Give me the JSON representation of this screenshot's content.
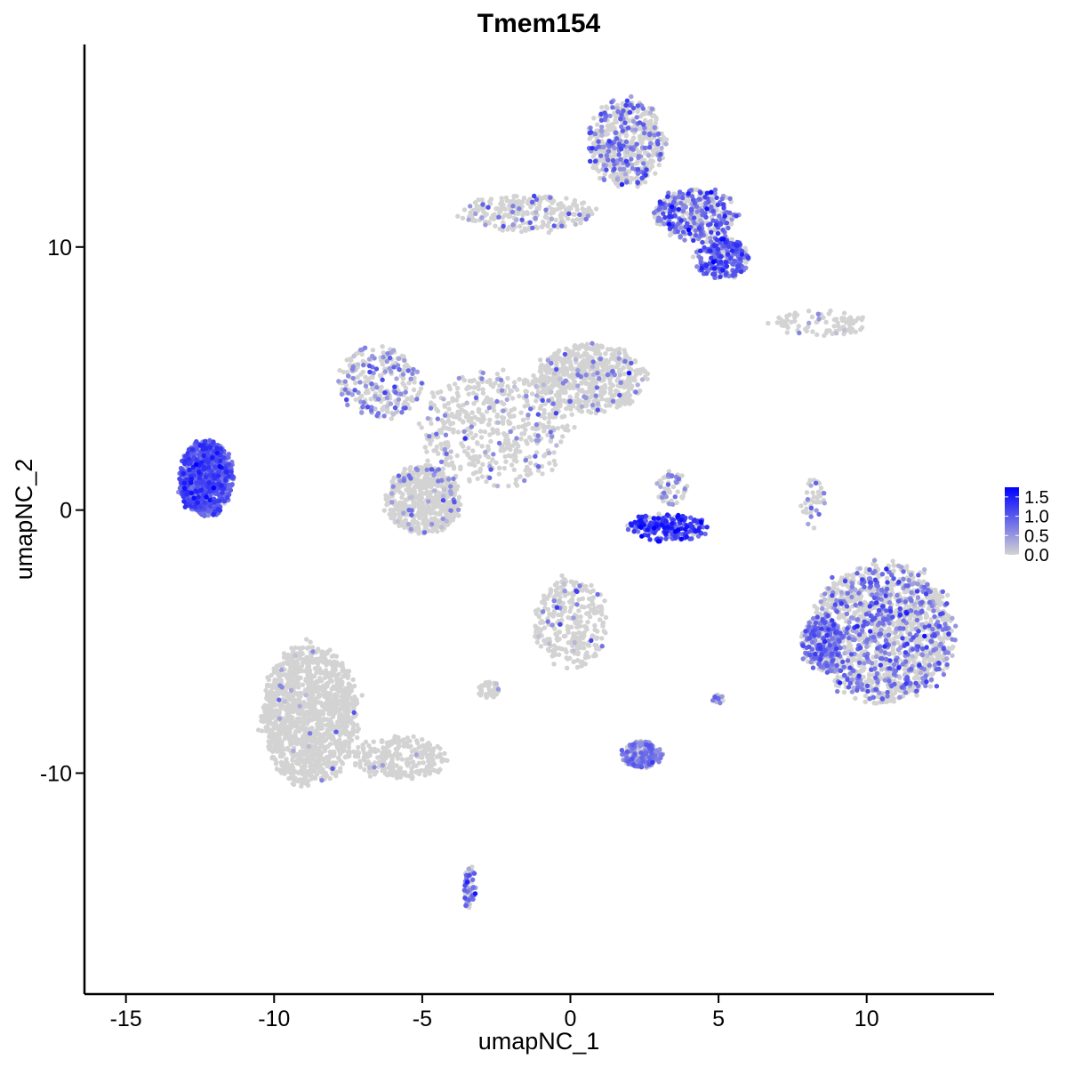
{
  "chart_data": {
    "type": "scatter",
    "title": "Tmem154",
    "xlabel": "umapNC_1",
    "ylabel": "umapNC_2",
    "xlim": [
      -16.4,
      14.3
    ],
    "ylim": [
      -18.4,
      17.7
    ],
    "xticks": [
      -15,
      -10,
      -5,
      0,
      5,
      10
    ],
    "yticks": [
      -10,
      0,
      10
    ],
    "xtick_labels": [
      "-15",
      "-10",
      "-5",
      "0",
      "5",
      "10"
    ],
    "ytick_labels": [
      "-10",
      "0",
      "10"
    ],
    "grid": false,
    "legend": {
      "position": "right",
      "type": "colorbar",
      "ticks": [
        0.0,
        0.5,
        1.0,
        1.5
      ],
      "tick_labels": [
        "0.0",
        "0.5",
        "1.0",
        "1.5"
      ],
      "range": [
        0.0,
        1.75
      ],
      "low_color": "#d3d3d3",
      "high_color": "#0000ff"
    },
    "clusters": [
      {
        "x": [
          -13.2,
          -11.4
        ],
        "y": [
          -0.2,
          2.6
        ],
        "density": 900,
        "expr_frac": 0.95,
        "expr_level": 0.9
      },
      {
        "x": [
          -7.9,
          -5.0
        ],
        "y": [
          3.5,
          6.2
        ],
        "density": 250,
        "expr_frac": 0.35,
        "expr_level": 0.55
      },
      {
        "x": [
          -6.2,
          -3.7
        ],
        "y": [
          -0.9,
          1.7
        ],
        "density": 550,
        "expr_frac": 0.08,
        "expr_level": 0.5
      },
      {
        "x": [
          -5.0,
          0.0
        ],
        "y": [
          1.0,
          5.2
        ],
        "density": 500,
        "expr_frac": 0.12,
        "expr_level": 0.6
      },
      {
        "x": [
          -1.2,
          2.5
        ],
        "y": [
          3.7,
          6.3
        ],
        "density": 600,
        "expr_frac": 0.08,
        "expr_level": 0.55
      },
      {
        "x": [
          -3.6,
          0.8
        ],
        "y": [
          10.6,
          12.0
        ],
        "density": 260,
        "expr_frac": 0.15,
        "expr_level": 0.6
      },
      {
        "x": [
          0.6,
          3.2
        ],
        "y": [
          12.3,
          15.6
        ],
        "density": 520,
        "expr_frac": 0.3,
        "expr_level": 0.7
      },
      {
        "x": [
          2.8,
          5.6
        ],
        "y": [
          10.3,
          12.2
        ],
        "density": 360,
        "expr_frac": 0.55,
        "expr_level": 0.85
      },
      {
        "x": [
          4.2,
          6.0
        ],
        "y": [
          8.8,
          10.4
        ],
        "density": 260,
        "expr_frac": 0.8,
        "expr_level": 0.9
      },
      {
        "x": [
          2.0,
          4.6
        ],
        "y": [
          -1.2,
          -0.1
        ],
        "density": 200,
        "expr_frac": 0.9,
        "expr_level": 1.2
      },
      {
        "x": [
          2.9,
          3.9
        ],
        "y": [
          0.2,
          1.5
        ],
        "density": 60,
        "expr_frac": 0.35,
        "expr_level": 0.6
      },
      {
        "x": [
          8.2,
          12.9
        ],
        "y": [
          -7.3,
          -2.0
        ],
        "density": 1500,
        "expr_frac": 0.35,
        "expr_level": 0.7
      },
      {
        "x": [
          7.8,
          9.2
        ],
        "y": [
          -6.0,
          -4.0
        ],
        "density": 220,
        "expr_frac": 0.7,
        "expr_level": 0.8
      },
      {
        "x": [
          -10.4,
          -7.2
        ],
        "y": [
          -10.4,
          -5.2
        ],
        "density": 1300,
        "expr_frac": 0.01,
        "expr_level": 0.5
      },
      {
        "x": [
          -7.4,
          -4.2
        ],
        "y": [
          -10.2,
          -8.6
        ],
        "density": 260,
        "expr_frac": 0.03,
        "expr_level": 0.5
      },
      {
        "x": [
          -1.2,
          1.2
        ],
        "y": [
          -6.0,
          -2.6
        ],
        "density": 300,
        "expr_frac": 0.08,
        "expr_level": 0.55
      },
      {
        "x": [
          1.7,
          3.1
        ],
        "y": [
          -9.8,
          -8.8
        ],
        "density": 160,
        "expr_frac": 0.8,
        "expr_level": 0.6
      },
      {
        "x": [
          -3.6,
          -3.2
        ],
        "y": [
          -15.3,
          -13.5
        ],
        "density": 60,
        "expr_frac": 0.6,
        "expr_level": 0.7
      },
      {
        "x": [
          6.7,
          10.0
        ],
        "y": [
          6.6,
          7.6
        ],
        "density": 90,
        "expr_frac": 0.1,
        "expr_level": 0.5
      },
      {
        "x": [
          7.8,
          8.6
        ],
        "y": [
          -0.8,
          1.2
        ],
        "density": 40,
        "expr_frac": 0.4,
        "expr_level": 0.5
      },
      {
        "x": [
          -3.1,
          -2.4
        ],
        "y": [
          -7.2,
          -6.5
        ],
        "density": 50,
        "expr_frac": 0.1,
        "expr_level": 0.5
      },
      {
        "x": [
          4.8,
          5.2
        ],
        "y": [
          -7.4,
          -7.0
        ],
        "density": 25,
        "expr_frac": 0.5,
        "expr_level": 0.6
      }
    ]
  }
}
